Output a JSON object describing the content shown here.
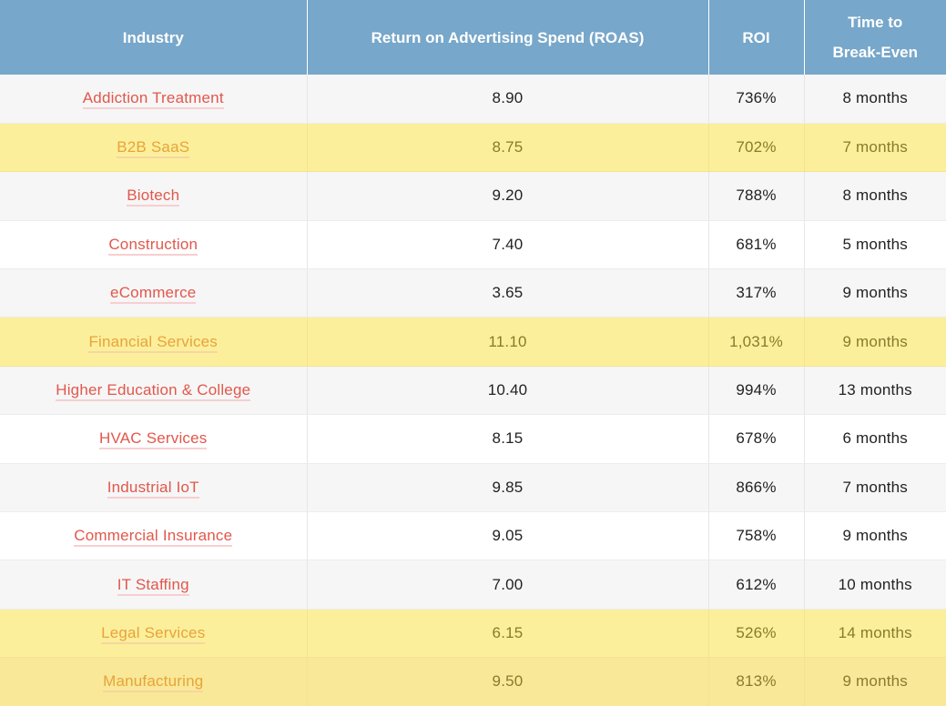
{
  "table": {
    "headers": {
      "industry": "Industry",
      "roas": "Return on Advertising Spend (ROAS)",
      "roi": "ROI",
      "breakeven_line1": "Time to",
      "breakeven_line2": "Break-Even"
    },
    "rows": [
      {
        "industry": "Addiction Treatment",
        "roas": "8.90",
        "roi": "736%",
        "breakeven": "8 months"
      },
      {
        "industry": "B2B SaaS",
        "roas": "8.75",
        "roi": "702%",
        "breakeven": "7 months"
      },
      {
        "industry": "Biotech",
        "roas": "9.20",
        "roi": "788%",
        "breakeven": "8 months"
      },
      {
        "industry": "Construction",
        "roas": "7.40",
        "roi": "681%",
        "breakeven": "5 months"
      },
      {
        "industry": "eCommerce",
        "roas": "3.65",
        "roi": "317%",
        "breakeven": "9 months"
      },
      {
        "industry": "Financial Services",
        "roas": "11.10",
        "roi": "1,031%",
        "breakeven": "9 months"
      },
      {
        "industry": "Higher Education & College",
        "roas": "10.40",
        "roi": "994%",
        "breakeven": "13 months"
      },
      {
        "industry": "HVAC Services",
        "roas": "8.15",
        "roi": "678%",
        "breakeven": "6 months"
      },
      {
        "industry": "Industrial IoT",
        "roas": "9.85",
        "roi": "866%",
        "breakeven": "7 months"
      },
      {
        "industry": "Commercial Insurance",
        "roas": "9.05",
        "roi": "758%",
        "breakeven": "9 months"
      },
      {
        "industry": "IT Staffing",
        "roas": "7.00",
        "roi": "612%",
        "breakeven": "10 months"
      },
      {
        "industry": "Legal Services",
        "roas": "6.15",
        "roi": "526%",
        "breakeven": "14 months"
      },
      {
        "industry": "Manufacturing",
        "roas": "9.50",
        "roi": "813%",
        "breakeven": "9 months"
      }
    ]
  },
  "colors": {
    "header_bg": "#77a7ca",
    "link": "#e2574c",
    "highlight_bg": "#fcef9c",
    "highlight_link": "#e8a33a"
  }
}
